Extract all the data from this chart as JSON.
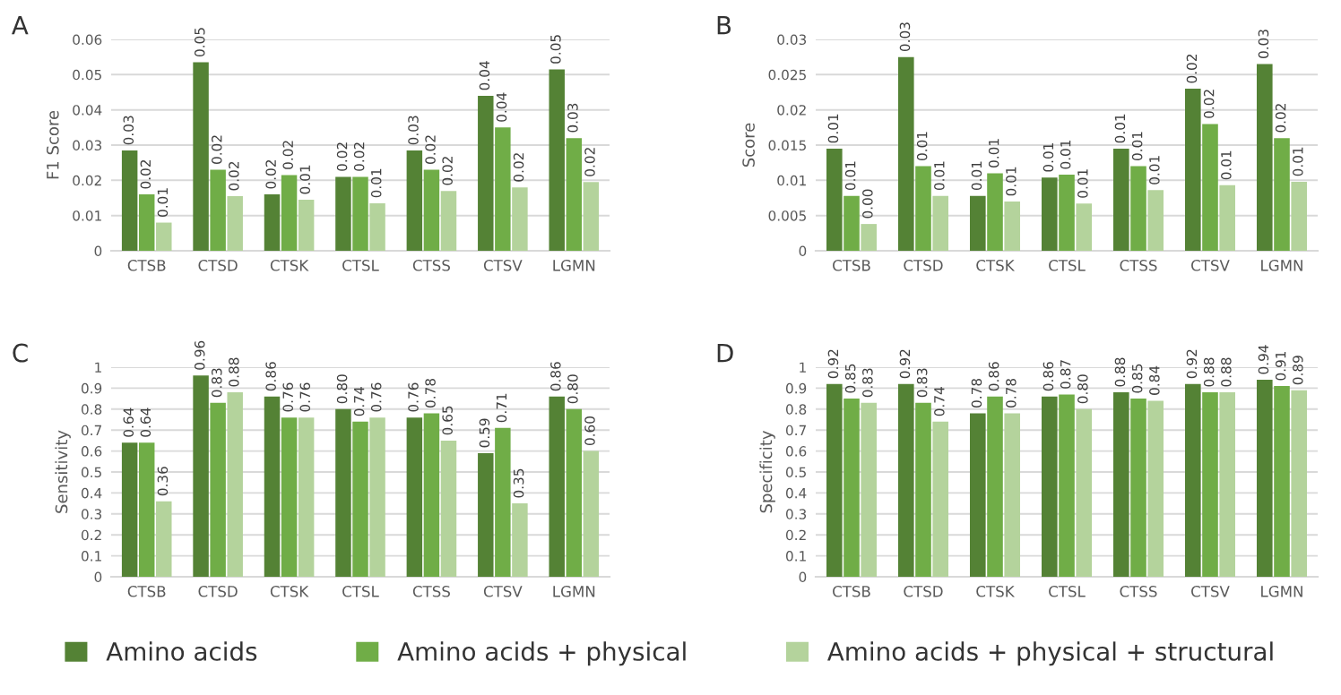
{
  "chart_data": [
    {
      "type": "bar",
      "title": "A",
      "ylabel": "F1 Score",
      "categories": [
        "CTSB",
        "CTSD",
        "CTSK",
        "CTSL",
        "CTSS",
        "CTSV",
        "LGMN"
      ],
      "ylim": [
        0,
        0.06
      ],
      "yticks": [
        0,
        0.01,
        0.02,
        0.03,
        0.04,
        0.05,
        0.06
      ],
      "grid": "y",
      "legend": "bottom",
      "series": [
        {
          "name": "Amino acids",
          "color": "#548235",
          "values": [
            0.0285,
            0.0535,
            0.016,
            0.021,
            0.0285,
            0.044,
            0.0515
          ],
          "value_labels": [
            "0.03",
            "0.05",
            "0.02",
            "0.02",
            "0.03",
            "0.04",
            "0.05"
          ]
        },
        {
          "name": "Amino acids + physical",
          "color": "#70ad47",
          "values": [
            0.016,
            0.023,
            0.0215,
            0.021,
            0.023,
            0.035,
            0.032
          ],
          "value_labels": [
            "0.02",
            "0.02",
            "0.02",
            "0.02",
            "0.02",
            "0.04",
            "0.03"
          ]
        },
        {
          "name": "Amino acids + physical + structural",
          "color": "#b4d39c",
          "values": [
            0.008,
            0.0155,
            0.0145,
            0.0135,
            0.017,
            0.018,
            0.0195
          ],
          "value_labels": [
            "0.01",
            "0.02",
            "0.01",
            "0.01",
            "0.02",
            "0.02",
            "0.02"
          ]
        }
      ]
    },
    {
      "type": "bar",
      "title": "B",
      "ylabel": "Score",
      "categories": [
        "CTSB",
        "CTSD",
        "CTSK",
        "CTSL",
        "CTSS",
        "CTSV",
        "LGMN"
      ],
      "ylim": [
        0,
        0.03
      ],
      "yticks": [
        0,
        0.005,
        0.01,
        0.015,
        0.02,
        0.025,
        0.03
      ],
      "grid": "y",
      "series": [
        {
          "color": "#548235",
          "values": [
            0.0145,
            0.0275,
            0.0078,
            0.0104,
            0.0145,
            0.023,
            0.0265
          ],
          "value_labels": [
            "0.01",
            "0.03",
            "0.01",
            "0.01",
            "0.01",
            "0.02",
            "0.03"
          ]
        },
        {
          "color": "#70ad47",
          "values": [
            0.0078,
            0.012,
            0.011,
            0.0108,
            0.012,
            0.018,
            0.016
          ],
          "value_labels": [
            "0.01",
            "0.01",
            "0.01",
            "0.01",
            "0.01",
            "0.02",
            "0.02"
          ]
        },
        {
          "color": "#b4d39c",
          "values": [
            0.0038,
            0.0078,
            0.007,
            0.0067,
            0.0086,
            0.0093,
            0.0098
          ],
          "value_labels": [
            "0.00",
            "0.01",
            "0.01",
            "0.01",
            "0.01",
            "0.01",
            "0.01"
          ]
        }
      ]
    },
    {
      "type": "bar",
      "title": "C",
      "ylabel": "Sensitivity",
      "categories": [
        "CTSB",
        "CTSD",
        "CTSK",
        "CTSL",
        "CTSS",
        "CTSV",
        "LGMN"
      ],
      "ylim": [
        0,
        1
      ],
      "yticks": [
        0,
        0.1,
        0.2,
        0.3,
        0.4,
        0.5,
        0.6,
        0.7,
        0.8,
        0.9,
        1
      ],
      "grid": "y",
      "series": [
        {
          "color": "#548235",
          "values": [
            0.64,
            0.96,
            0.86,
            0.8,
            0.76,
            0.59,
            0.86
          ],
          "value_labels": [
            "0.64",
            "0.96",
            "0.86",
            "0.80",
            "0.76",
            "0.59",
            "0.86"
          ]
        },
        {
          "color": "#70ad47",
          "values": [
            0.64,
            0.83,
            0.76,
            0.74,
            0.78,
            0.71,
            0.8
          ],
          "value_labels": [
            "0.64",
            "0.83",
            "0.76",
            "0.74",
            "0.78",
            "0.71",
            "0.80"
          ]
        },
        {
          "color": "#b4d39c",
          "values": [
            0.36,
            0.88,
            0.76,
            0.76,
            0.65,
            0.35,
            0.6
          ],
          "value_labels": [
            "0.36",
            "0.88",
            "0.76",
            "0.76",
            "0.65",
            "0.35",
            "0.60"
          ]
        }
      ]
    },
    {
      "type": "bar",
      "title": "D",
      "ylabel": "Specificity",
      "categories": [
        "CTSB",
        "CTSD",
        "CTSK",
        "CTSL",
        "CTSS",
        "CTSV",
        "LGMN"
      ],
      "ylim": [
        0,
        1
      ],
      "yticks": [
        0,
        0.1,
        0.2,
        0.3,
        0.4,
        0.5,
        0.6,
        0.7,
        0.8,
        0.9,
        1
      ],
      "grid": "y",
      "series": [
        {
          "color": "#548235",
          "values": [
            0.92,
            0.92,
            0.78,
            0.86,
            0.88,
            0.92,
            0.94
          ],
          "value_labels": [
            "0.92",
            "0.92",
            "0.78",
            "0.86",
            "0.88",
            "0.92",
            "0.94"
          ]
        },
        {
          "color": "#70ad47",
          "values": [
            0.85,
            0.83,
            0.86,
            0.87,
            0.85,
            0.88,
            0.91
          ],
          "value_labels": [
            "0.85",
            "0.83",
            "0.86",
            "0.87",
            "0.85",
            "0.88",
            "0.91"
          ]
        },
        {
          "color": "#b4d39c",
          "values": [
            0.83,
            0.74,
            0.78,
            0.8,
            0.84,
            0.88,
            0.89
          ],
          "value_labels": [
            "0.83",
            "0.74",
            "0.78",
            "0.80",
            "0.84",
            "0.88",
            "0.89"
          ]
        }
      ]
    }
  ]
}
